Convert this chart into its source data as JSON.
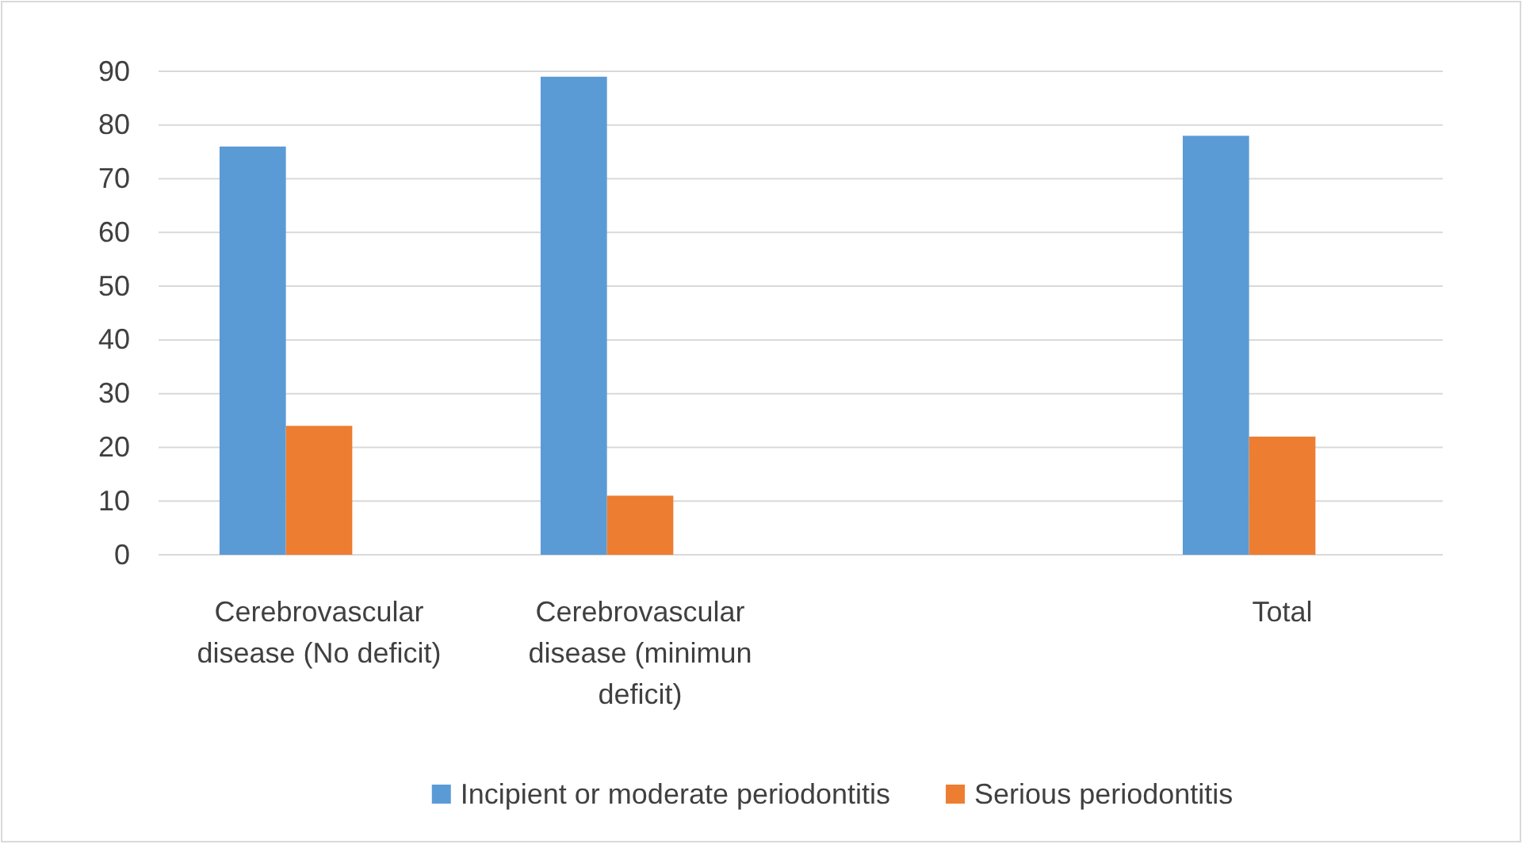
{
  "chart_data": {
    "type": "bar",
    "categories": [
      "Cerebrovascular disease (No deficit)",
      "Cerebrovascular disease (minimun deficit)",
      null,
      "Total"
    ],
    "series": [
      {
        "name": "Incipient or moderate periodontitis",
        "color": "#5b9bd5",
        "values": [
          76,
          89,
          null,
          78
        ]
      },
      {
        "name": "Serious periodontitis",
        "color": "#ed7d31",
        "values": [
          24,
          11,
          null,
          22
        ]
      },
      {
        "color": "#a5a5a5",
        "values": [
          0,
          null,
          null,
          null
        ]
      }
    ],
    "ylim": [
      0,
      90
    ],
    "yticks": [
      0,
      10,
      20,
      30,
      40,
      50,
      60,
      70,
      80,
      90
    ],
    "grid": "y",
    "legend": "bottom"
  }
}
